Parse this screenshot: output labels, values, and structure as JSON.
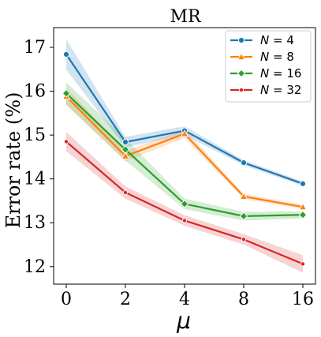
{
  "chart_data": {
    "type": "line",
    "title": "MR",
    "xlabel": "μ",
    "ylabel": "Error rate (%)",
    "categories": [
      "0",
      "2",
      "4",
      "8",
      "16"
    ],
    "ylim": [
      11.6,
      17.45
    ],
    "yticks": [
      12,
      13,
      14,
      15,
      16,
      17
    ],
    "grid": false,
    "legend_position": "top-right",
    "series": [
      {
        "name": "N = 4",
        "legend": {
          "prefix": "N",
          "suffix": " = 4"
        },
        "color": "#1f77b4",
        "marker": "circle",
        "values": [
          16.84,
          14.84,
          15.1,
          14.37,
          13.89
        ],
        "band": [
          0.35,
          0.12,
          0.1,
          0.06,
          0.05
        ]
      },
      {
        "name": "N = 8",
        "legend": {
          "prefix": "N",
          "suffix": " = 8"
        },
        "color": "#ff7f0e",
        "marker": "triangle",
        "values": [
          15.88,
          14.52,
          15.03,
          13.6,
          13.36
        ],
        "band": [
          0.2,
          0.12,
          0.1,
          0.06,
          0.05
        ]
      },
      {
        "name": "N = 16",
        "legend": {
          "prefix": "N",
          "suffix": " = 16"
        },
        "color": "#2ca02c",
        "marker": "diamond",
        "values": [
          15.95,
          14.67,
          13.43,
          13.15,
          13.18
        ],
        "band": [
          0.25,
          0.25,
          0.12,
          0.1,
          0.08
        ]
      },
      {
        "name": "N = 32",
        "legend": {
          "prefix": "N",
          "suffix": " = 32"
        },
        "color": "#d62728",
        "marker": "circle-small",
        "values": [
          14.85,
          13.69,
          13.05,
          12.62,
          12.06
        ],
        "band": [
          0.22,
          0.14,
          0.12,
          0.12,
          0.2
        ]
      }
    ]
  }
}
